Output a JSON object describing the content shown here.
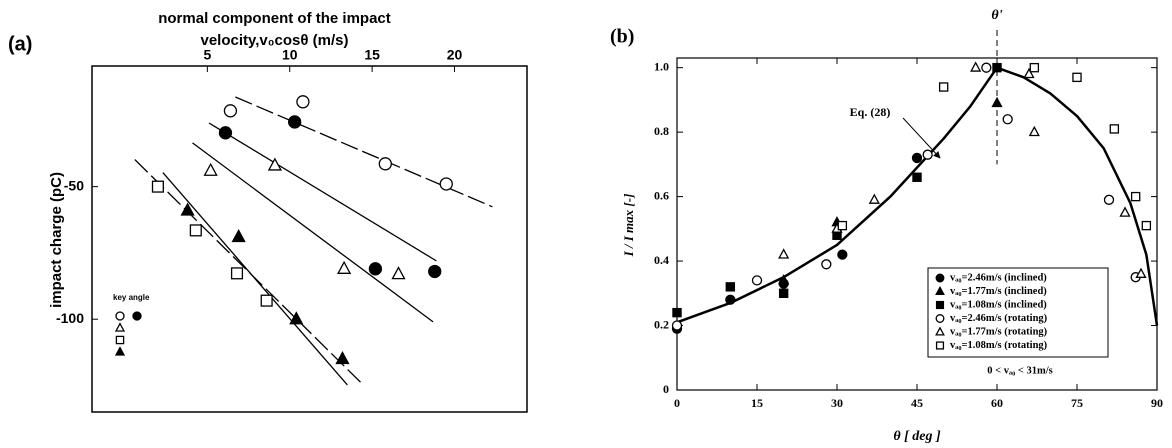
{
  "chart_data": [
    {
      "type": "scatter",
      "label": "(a)",
      "xlabel": [
        "normal component of the impact",
        "velocity,v₀cosθ   (m/s)"
      ],
      "ylabel": "impact charge   (pC)",
      "x_axis_position": "top",
      "color": "#000000",
      "xlim": [
        -2,
        24.4
      ],
      "ylim": [
        -135,
        -4.5
      ],
      "xticks": [
        5,
        10,
        15,
        20
      ],
      "yticks": [
        -50,
        -100
      ],
      "legend_title": "key angle",
      "series": [
        {
          "marker": "circle",
          "filled": false,
          "x": [
            6.4,
            10.8,
            15.8,
            19.5
          ],
          "values": [
            -21.4,
            -18,
            -41.4,
            -49
          ]
        },
        {
          "marker": "circle",
          "filled": true,
          "x": [
            6.1,
            10.3,
            15.2,
            18.8
          ],
          "values": [
            -29.7,
            -25.6,
            -81,
            -82
          ]
        },
        {
          "marker": "triangle",
          "filled": false,
          "x": [
            5.2,
            9.1,
            13.3,
            16.6
          ],
          "values": [
            -44,
            -42,
            -81,
            -83
          ]
        },
        {
          "marker": "square",
          "filled": false,
          "x": [
            2.0,
            4.3,
            6.8,
            8.6
          ],
          "values": [
            -50,
            -66.5,
            -82.7,
            -93
          ]
        },
        {
          "marker": "triangle",
          "filled": true,
          "x": [
            3.8,
            6.9,
            10.4,
            13.2
          ],
          "values": [
            -59,
            -69,
            -100,
            -115
          ]
        }
      ],
      "fit_lines": [
        {
          "dash": "long",
          "x": [
            6.7,
            22.3
          ],
          "values": [
            -16.2,
            -57.6
          ]
        },
        {
          "dash": "none",
          "x": [
            5.1,
            18.9
          ],
          "values": [
            -26,
            -78
          ]
        },
        {
          "dash": "none",
          "x": [
            4.1,
            18.7
          ],
          "values": [
            -33.5,
            -101
          ]
        },
        {
          "dash": "none",
          "x": [
            2.3,
            13.5
          ],
          "values": [
            -44.7,
            -124.8
          ]
        },
        {
          "dash": "long",
          "x": [
            0.6,
            14.4
          ],
          "values": [
            -39.8,
            -124.4
          ]
        }
      ]
    },
    {
      "type": "scatter",
      "label": "(b)",
      "xlabel": "θ [ deg ]",
      "ylabel": "I / I max [-]",
      "color": "#000000",
      "xlim": [
        0,
        90
      ],
      "ylim": [
        0,
        1.03
      ],
      "xticks": [
        0,
        15,
        30,
        45,
        60,
        75,
        90
      ],
      "yticks": [
        0,
        0.2,
        0.4,
        0.6,
        0.8,
        {
          "value": 1,
          "label": "1.0"
        }
      ],
      "vline": {
        "x": 60,
        "label": "θ'"
      },
      "curve": {
        "annotation": "Eq. (28)",
        "x": [
          0,
          10,
          20,
          30,
          40,
          50,
          55,
          60,
          65,
          70,
          75,
          80,
          85,
          88,
          90
        ],
        "values": [
          0.21,
          0.27,
          0.35,
          0.45,
          0.6,
          0.78,
          0.88,
          1.0,
          0.97,
          0.92,
          0.85,
          0.75,
          0.58,
          0.42,
          0.2
        ]
      },
      "series": [
        {
          "name": "vₐ₀=2.46m/s (inclined)",
          "marker": "circle",
          "filled": true,
          "x": [
            0,
            10,
            20,
            31,
            45
          ],
          "values": [
            0.19,
            0.28,
            0.33,
            0.42,
            0.72
          ]
        },
        {
          "name": "vₐ₀=1.77m/s (inclined)",
          "marker": "triangle",
          "filled": true,
          "x": [
            20,
            30,
            60
          ],
          "values": [
            0.34,
            0.52,
            0.89
          ]
        },
        {
          "name": "vₐ₀=1.08m/s (inclined)",
          "marker": "square",
          "filled": true,
          "x": [
            0,
            10,
            20,
            30,
            45,
            60
          ],
          "values": [
            0.24,
            0.32,
            0.3,
            0.48,
            0.66,
            1.0
          ]
        },
        {
          "name": "vₐ₀=2.46m/s (rotating)",
          "marker": "circle",
          "filled": false,
          "x": [
            0,
            15,
            28,
            47,
            58,
            62,
            81,
            86
          ],
          "values": [
            0.2,
            0.34,
            0.39,
            0.73,
            1.0,
            0.84,
            0.59,
            0.35
          ]
        },
        {
          "name": "vₐ₀=1.77m/s (rotating)",
          "marker": "triangle",
          "filled": false,
          "x": [
            20,
            30,
            37,
            56,
            66,
            67,
            84,
            87
          ],
          "values": [
            0.42,
            0.5,
            0.59,
            1.0,
            0.98,
            0.8,
            0.55,
            0.36
          ]
        },
        {
          "name": "vₐ₀=1.08m/s (rotating)",
          "marker": "square",
          "filled": false,
          "x": [
            31,
            50,
            67,
            75,
            82,
            86,
            88
          ],
          "values": [
            0.51,
            0.94,
            1.0,
            0.97,
            0.81,
            0.6,
            0.51
          ]
        }
      ],
      "legend_note": "0 < vₐ₀ < 31m/s"
    }
  ]
}
